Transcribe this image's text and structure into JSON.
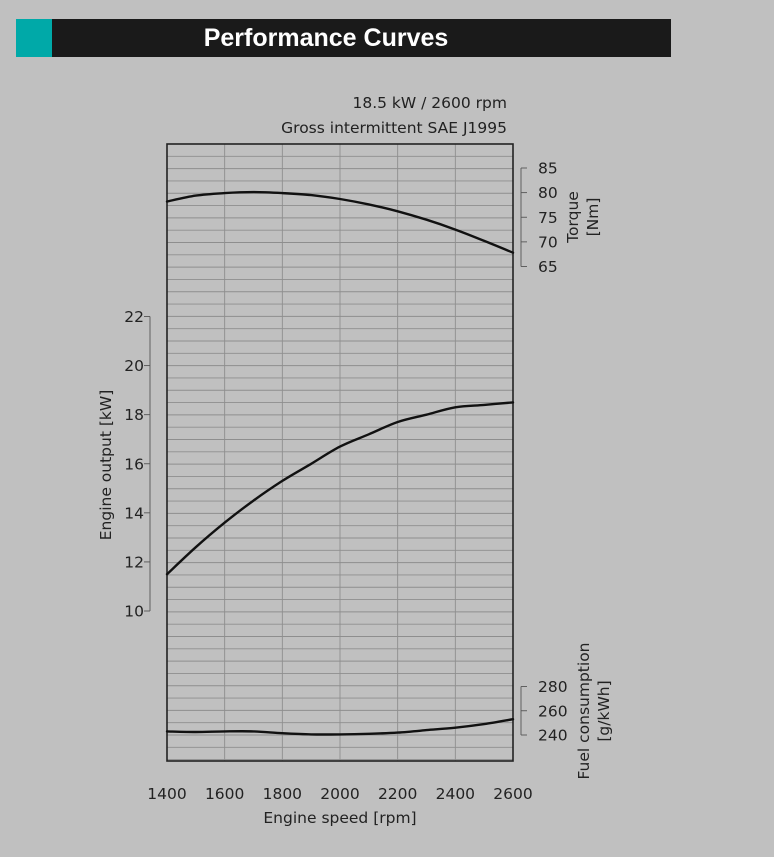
{
  "header": {
    "title": "Performance Curves",
    "accent_color": "#00a9a8",
    "bar_color": "#1a1a1a"
  },
  "chart_data": {
    "type": "line",
    "subtitle_lines": [
      "18.5 kW / 2600 rpm",
      "Gross intermittent SAE J1995"
    ],
    "x_axis": {
      "label": "Engine speed [rpm]",
      "range": [
        1400,
        2600
      ],
      "ticks": [
        1400,
        1600,
        1800,
        2000,
        2200,
        2400,
        2600
      ]
    },
    "grid": true,
    "axes": {
      "torque": {
        "label": "Torque",
        "unit": "[Nm]",
        "side": "right",
        "ticks": [
          65,
          70,
          75,
          80,
          85
        ]
      },
      "output": {
        "label": "Engine output",
        "unit": "[kW]",
        "side": "left",
        "ticks": [
          10,
          12,
          14,
          16,
          18,
          20,
          22
        ]
      },
      "fuel": {
        "label": "Fuel consumption",
        "unit": "[g/kWh]",
        "side": "right",
        "ticks": [
          240,
          260,
          280
        ]
      }
    },
    "series": [
      {
        "axis": "torque",
        "x": [
          1400,
          1500,
          1600,
          1700,
          1800,
          1900,
          2000,
          2100,
          2200,
          2300,
          2400,
          2500,
          2600
        ],
        "y": [
          78.2,
          79.4,
          79.9,
          80.1,
          79.9,
          79.5,
          78.7,
          77.6,
          76.2,
          74.5,
          72.5,
          70.2,
          67.8
        ]
      },
      {
        "axis": "output",
        "x": [
          1400,
          1500,
          1600,
          1700,
          1800,
          1900,
          2000,
          2100,
          2200,
          2300,
          2400,
          2500,
          2600
        ],
        "y": [
          11.5,
          12.6,
          13.6,
          14.5,
          15.3,
          16.0,
          16.7,
          17.2,
          17.7,
          18.0,
          18.3,
          18.4,
          18.5
        ]
      },
      {
        "axis": "fuel",
        "x": [
          1400,
          1500,
          1600,
          1700,
          1800,
          1900,
          2000,
          2100,
          2200,
          2300,
          2400,
          2500,
          2600
        ],
        "y": [
          243,
          242.5,
          243,
          243,
          241.5,
          240.5,
          240.5,
          241,
          242,
          244,
          246,
          249,
          253
        ]
      }
    ]
  }
}
